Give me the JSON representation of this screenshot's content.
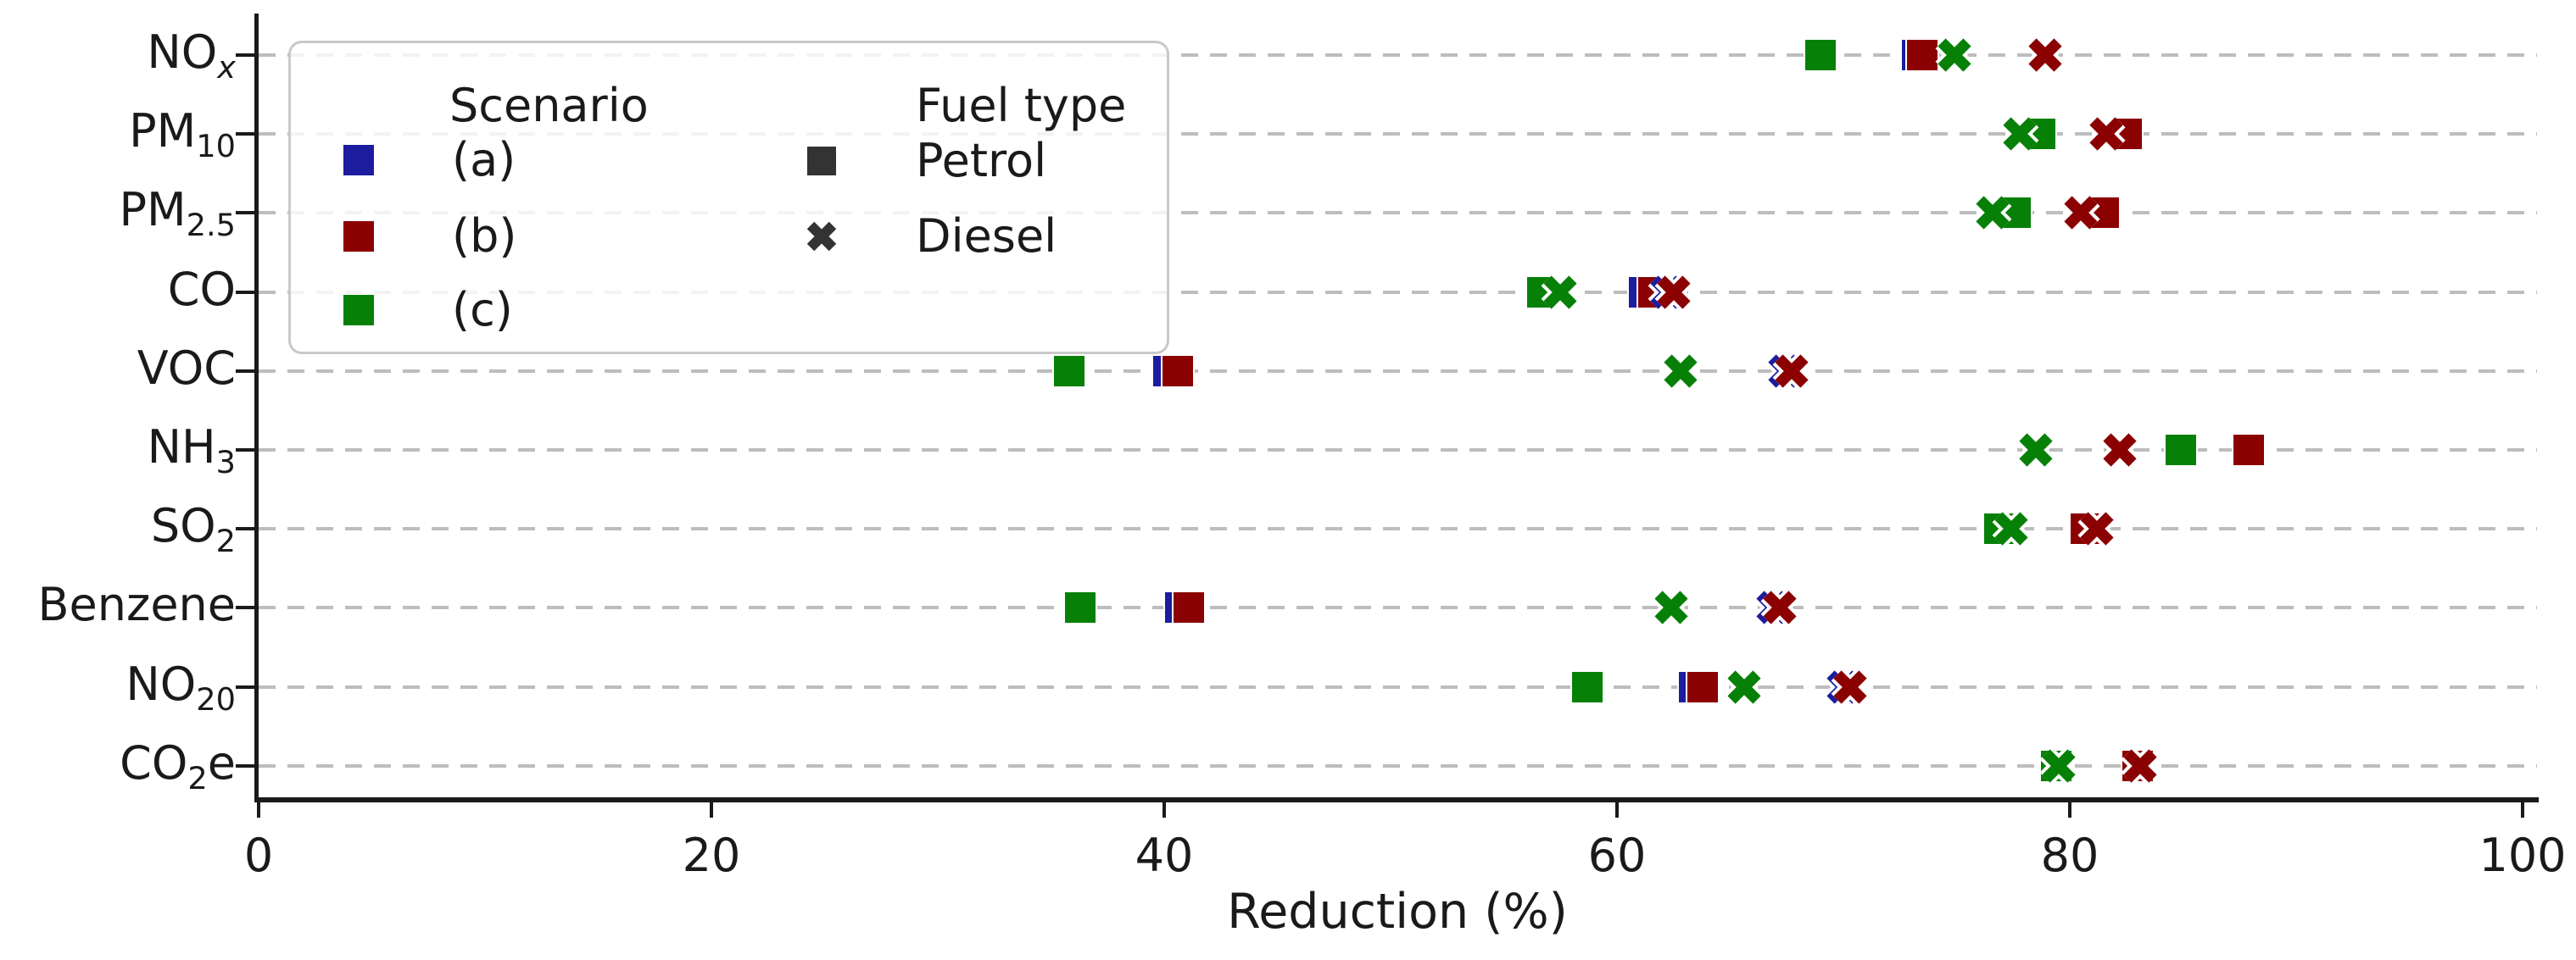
{
  "axis": {
    "xlabel": "Reduction (%)",
    "xticks": [
      0,
      20,
      40,
      60,
      80,
      100
    ]
  },
  "legend": {
    "scenario_title": "Scenario",
    "fuel_title": "Fuel type",
    "scenarios": [
      {
        "label": "(a)",
        "color": "#1c1c9e"
      },
      {
        "label": "(b)",
        "color": "#8b0000"
      },
      {
        "label": "(c)",
        "color": "#078007"
      }
    ],
    "fuels": [
      {
        "label": "Petrol",
        "marker": "square"
      },
      {
        "label": "Diesel",
        "marker": "x"
      }
    ],
    "fuel_marker_color": "#333333"
  },
  "colors": {
    "scenario_a": "#1c1c9e",
    "scenario_b": "#8b0000",
    "scenario_c": "#078007",
    "gridline": "#bdbdbd",
    "axis": "#1a1a1a"
  },
  "chart_data": {
    "type": "scatter",
    "title": "",
    "xlabel": "Reduction (%)",
    "ylabel": "",
    "xlim": [
      0,
      100
    ],
    "xticks": [
      0,
      20,
      40,
      60,
      80,
      100
    ],
    "grid": "horizontal-dashed",
    "legend_position": "upper-left",
    "categories": [
      "NOx",
      "PM10",
      "PM2.5",
      "CO",
      "VOC",
      "NH3",
      "SO2",
      "Benzene",
      "NO20",
      "CO2e"
    ],
    "category_parts": [
      [
        {
          "t": "NO"
        },
        {
          "t": "x",
          "sub": true,
          "i": true
        }
      ],
      [
        {
          "t": "PM"
        },
        {
          "t": "10",
          "sub": true
        }
      ],
      [
        {
          "t": "PM"
        },
        {
          "t": "2.5",
          "sub": true
        }
      ],
      [
        {
          "t": "CO"
        }
      ],
      [
        {
          "t": "VOC"
        }
      ],
      [
        {
          "t": "NH"
        },
        {
          "t": "3",
          "sub": true
        }
      ],
      [
        {
          "t": "SO"
        },
        {
          "t": "2",
          "sub": true
        }
      ],
      [
        {
          "t": "Benzene"
        }
      ],
      [
        {
          "t": "NO"
        },
        {
          "t": "20",
          "sub": true
        }
      ],
      [
        {
          "t": "CO"
        },
        {
          "t": "2",
          "sub": true
        },
        {
          "t": "e"
        }
      ]
    ],
    "series": [
      {
        "name": "(a) Petrol",
        "scenario": "(a)",
        "fuel": "Petrol",
        "marker": "square",
        "color": "#1c1c9e",
        "values": [
          73.25,
          82.5,
          81.5,
          61.2,
          40.2,
          87.9,
          80.7,
          40.7,
          63.4,
          83.0
        ]
      },
      {
        "name": "(b) Petrol",
        "scenario": "(b)",
        "fuel": "Petrol",
        "marker": "square",
        "color": "#8b0000",
        "values": [
          73.5,
          82.5,
          81.5,
          61.6,
          40.6,
          87.9,
          80.7,
          41.1,
          63.8,
          83.0
        ]
      },
      {
        "name": "(c) Petrol",
        "scenario": "(c)",
        "fuel": "Petrol",
        "marker": "square",
        "color": "#078007",
        "values": [
          69.0,
          78.7,
          77.6,
          56.7,
          35.8,
          84.9,
          76.9,
          36.3,
          58.7,
          79.4
        ]
      },
      {
        "name": "(a) Diesel",
        "scenario": "(a)",
        "fuel": "Diesel",
        "marker": "x",
        "color": "#1c1c9e",
        "values": [
          78.9,
          81.6,
          80.5,
          62.2,
          67.4,
          82.2,
          81.2,
          66.9,
          70.0,
          83.1
        ]
      },
      {
        "name": "(b) Diesel",
        "scenario": "(b)",
        "fuel": "Diesel",
        "marker": "x",
        "color": "#8b0000",
        "values": [
          78.9,
          81.6,
          80.5,
          62.5,
          67.7,
          82.2,
          81.2,
          67.2,
          70.3,
          83.1
        ]
      },
      {
        "name": "(c) Diesel",
        "scenario": "(c)",
        "fuel": "Diesel",
        "marker": "x",
        "color": "#078007",
        "values": [
          74.9,
          77.8,
          76.6,
          57.5,
          62.8,
          78.5,
          77.4,
          62.4,
          65.6,
          79.5
        ]
      }
    ]
  }
}
